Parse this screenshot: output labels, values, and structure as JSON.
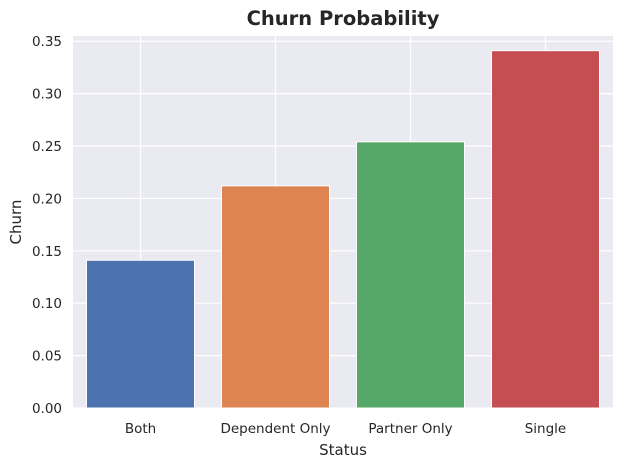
{
  "chart_data": {
    "type": "bar",
    "title": "Churn Probability",
    "xlabel": "Status",
    "ylabel": "Churn",
    "categories": [
      "Both",
      "Dependent Only",
      "Partner Only",
      "Single"
    ],
    "values": [
      0.141,
      0.212,
      0.254,
      0.341
    ],
    "colors": [
      "#4c72b0",
      "#dd8452",
      "#55a868",
      "#c44e52"
    ],
    "ylim": [
      0,
      0.355
    ],
    "yticks": [
      0.0,
      0.05,
      0.1,
      0.15,
      0.2,
      0.25,
      0.3,
      0.35
    ],
    "ytick_labels": [
      "0.00",
      "0.05",
      "0.10",
      "0.15",
      "0.20",
      "0.25",
      "0.30",
      "0.35"
    ],
    "grid": true,
    "background": "#eaeaf2",
    "grid_color": "#ffffff"
  }
}
